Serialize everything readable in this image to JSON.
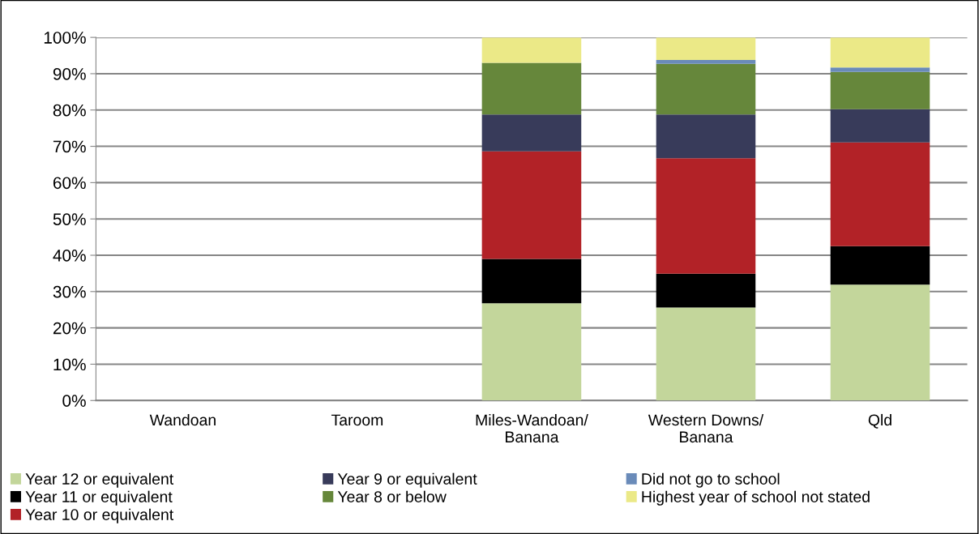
{
  "chart_data": {
    "type": "bar",
    "stacked": true,
    "categories": [
      "Wandoan",
      "Taroom",
      "Miles-Wandoan/\nBanana",
      "Western Downs/\nBanana",
      "Qld"
    ],
    "ylim": [
      0,
      100
    ],
    "yticks": [
      {
        "value": 0,
        "label": "0%"
      },
      {
        "value": 10,
        "label": "10%"
      },
      {
        "value": 20,
        "label": "20%"
      },
      {
        "value": 30,
        "label": "30%"
      },
      {
        "value": 40,
        "label": "40%"
      },
      {
        "value": 50,
        "label": "50%"
      },
      {
        "value": 60,
        "label": "60%"
      },
      {
        "value": 70,
        "label": "70%"
      },
      {
        "value": 80,
        "label": "80%"
      },
      {
        "value": 90,
        "label": "90%"
      },
      {
        "value": 100,
        "label": "100%"
      }
    ],
    "grid": "y",
    "legend": "bottom",
    "series": [
      {
        "name": "Year 12 or equivalent",
        "color": "#c3d69b",
        "values": [
          null,
          null,
          26.8,
          25.6,
          31.9
        ]
      },
      {
        "name": "Year 11 or equivalent",
        "color": "#000000",
        "values": [
          null,
          null,
          12.2,
          9.3,
          10.6
        ]
      },
      {
        "name": "Year 10 or equivalent",
        "color": "#b22227",
        "values": [
          null,
          null,
          29.6,
          31.8,
          28.6
        ]
      },
      {
        "name": "Year 9 or equivalent",
        "color": "#383b5a",
        "values": [
          null,
          null,
          10.2,
          12.1,
          9.1
        ]
      },
      {
        "name": "Year 8 or below",
        "color": "#66873b",
        "values": [
          null,
          null,
          14.2,
          13.9,
          10.3
        ]
      },
      {
        "name": "Did not go to school",
        "color": "#6a8bb9",
        "values": [
          null,
          null,
          0,
          1.1,
          1.2
        ]
      },
      {
        "name": "Highest year of school not stated",
        "color": "#ebe987",
        "values": [
          null,
          null,
          7.0,
          6.2,
          8.3
        ]
      }
    ]
  }
}
